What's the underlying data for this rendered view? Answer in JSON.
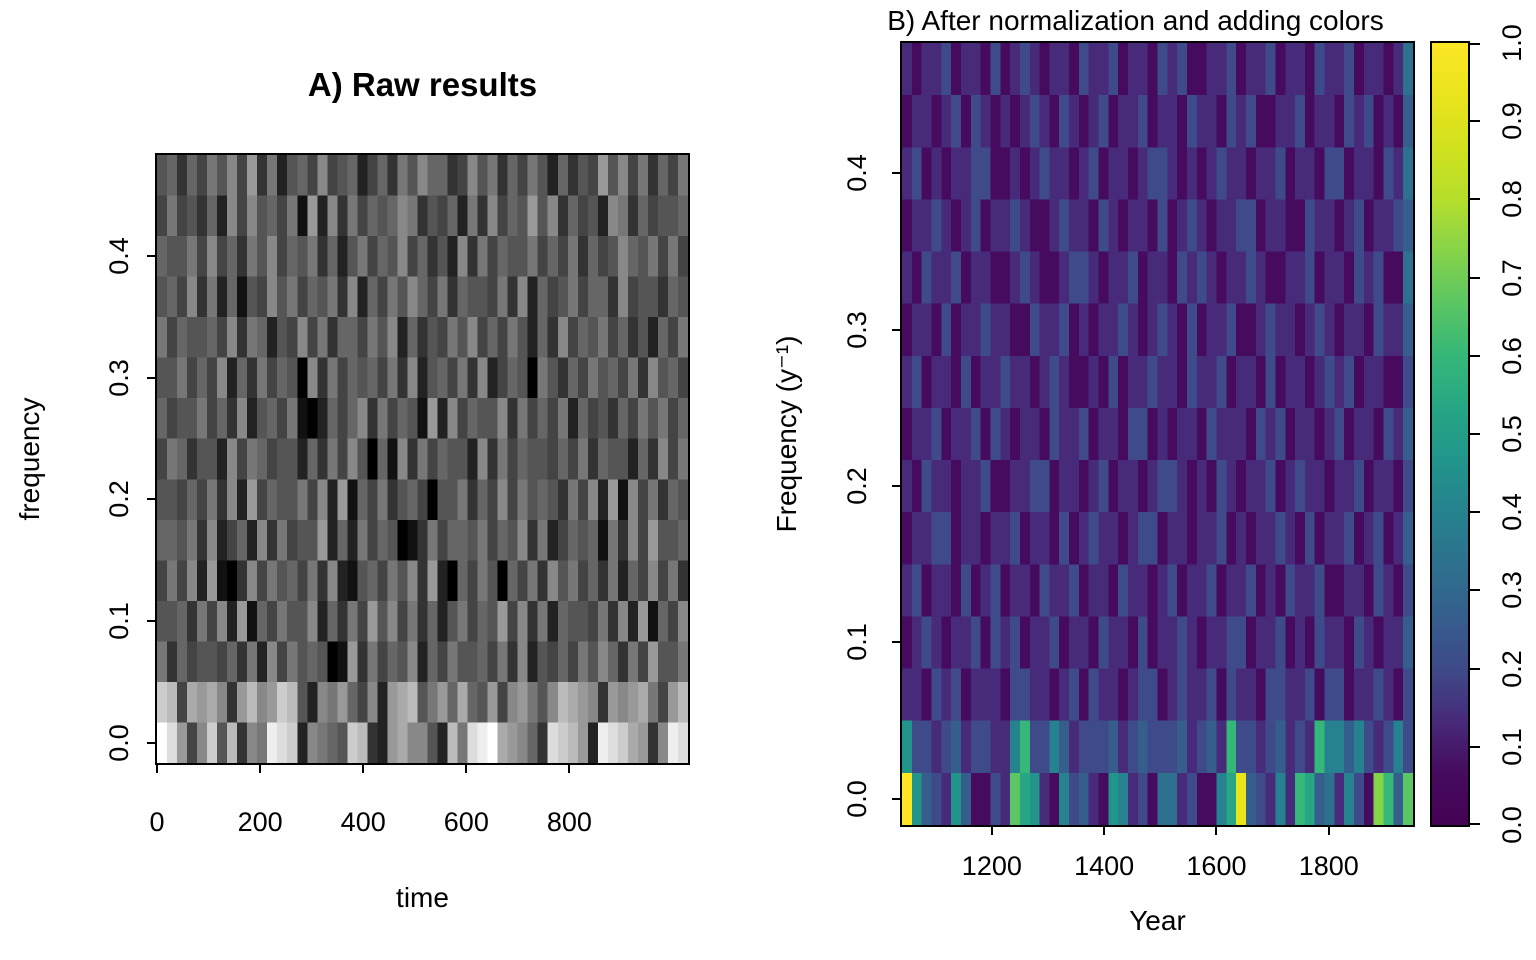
{
  "figure": {
    "background": "#ffffff",
    "text_color": "#000000"
  },
  "chart_data": [
    {
      "type": "heatmap",
      "panel": "A",
      "title": "A) Raw results",
      "xlabel": "time",
      "ylabel": "frequency",
      "x_range": [
        0,
        1030
      ],
      "y_range": [
        -0.0167,
        0.4833
      ],
      "x_ticks": {
        "values": [
          0,
          200,
          400,
          600,
          800
        ],
        "labels": [
          "0",
          "200",
          "400",
          "600",
          "800"
        ]
      },
      "y_ticks": {
        "values": [
          0.0,
          0.1,
          0.2,
          0.3,
          0.4
        ],
        "labels": [
          "0.0",
          "0.1",
          "0.2",
          "0.3",
          "0.4"
        ]
      },
      "colormap": "grayscale",
      "value_encoding": "hex char 0-f maps to intensity 0-1, white = high power",
      "n_rows": 15,
      "n_cols": 53,
      "rows_top_to_bottom": [
        "56364758493725648456246375866348573647526354958473647",
        "47453628485647192837465687354627384659583645287364556",
        "65574846375846573625746584635283746557464736458657474",
        "56483726154857465738264758647365547382645746638455365",
        "74655648376254847366475826354758464752638465746352647",
        "55746482637465083746564738256473824650753647564738564",
        "64557463825647102646837465192846558374647264536475746",
        "47635528476455263748506183746552837465546473655263847",
        "55464738294655748291647356405573648475653748291847365",
        "66573824628374559262746501374665746583724656173849556",
        "47482910384756473821564758392064750647385746372648473",
        "55637482916475582637495847362574659483726554738291648",
        "73645546372847565019374658264755647382546475863749557",
        "cb4a9a839b89cb5287964829ab5796a659489758ba983989a749b",
        "fd948c5b387edc28765cb329a8852b7defa9863dcb92edca938ed"
      ]
    },
    {
      "type": "heatmap",
      "panel": "B",
      "title": "B) After normalization and adding colors",
      "xlabel": "Year",
      "ylabel": "Frequency (y⁻¹)",
      "x_range": [
        1040,
        1950
      ],
      "y_range": [
        -0.0167,
        0.4833
      ],
      "x_ticks": {
        "values": [
          1200,
          1400,
          1600,
          1800
        ],
        "labels": [
          "1200",
          "1400",
          "1600",
          "1800"
        ]
      },
      "y_ticks": {
        "values": [
          0.0,
          0.1,
          0.2,
          0.3,
          0.4
        ],
        "labels": [
          "0.0",
          "0.1",
          "0.2",
          "0.3",
          "0.4"
        ]
      },
      "colormap": "viridis",
      "value_encoding": "hex char 0-f maps to normalized power 0-1",
      "viridis_colors": [
        "#440154",
        "#460b5e",
        "#472a7a",
        "#3e4a89",
        "#355e8c",
        "#2d718e",
        "#26828e",
        "#21958b",
        "#26a684",
        "#35b779",
        "#5bc663",
        "#85d349",
        "#b5de2b",
        "#d1e11e",
        "#e9e41c",
        "#fde725"
      ],
      "n_rows": 15,
      "n_cols": 52,
      "rows_top_to_bottom": [
        "2122312213123212213223122132311223122312213223122125",
        "1221231321212321321231223122132213231122312213231214",
        "2312122331121232212312212332121232212231221331221325",
        "1223212312232112322132122131232122331221132212312234",
        "2132231221123211233212231221323212232112231221323115",
        "1221312232211322312122321232131223112322123212213224",
        "2312213122322123211213122322132231221312212323122113",
        "1223122313212213223122133121221322213231221231221324",
        "2132212231122331221231221233212132122312322122312213",
        "1223312212231221312322123312212231212232131223123124",
        "2312213123122132231221322123122312231213223112213213",
        "1232122313231223122132213122321223312231213221321224",
        "2213231222133221231322123312322313221332231331223213",
        "7332342332269336423334234333423429332342329664632363",
        "f7432741132a8721634217623155231 68e4326298452631b94a7"
      ],
      "colorbar": {
        "range": [
          0,
          1
        ],
        "tick_values": [
          0,
          0.1,
          0.2,
          0.3,
          0.4,
          0.5,
          0.6,
          0.7,
          0.8,
          0.9,
          1.0
        ],
        "tick_labels": [
          "0.0",
          "0.1",
          "0.2",
          "0.3",
          "0.4",
          "0.5",
          "0.6",
          "0.7",
          "0.8",
          "0.9",
          "1.0"
        ]
      }
    }
  ]
}
